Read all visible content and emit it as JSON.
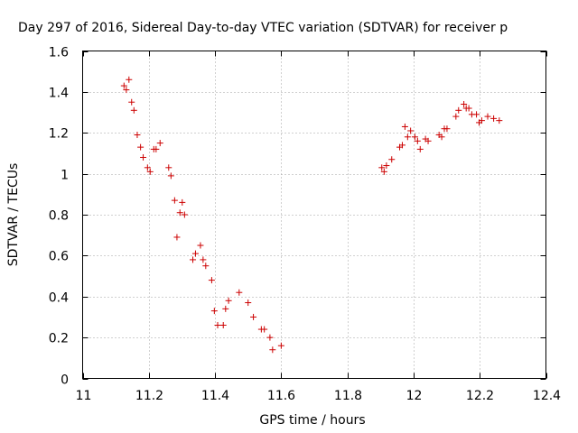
{
  "chart_data": {
    "type": "scatter",
    "title": "Day 297 of 2016, Sidereal Day-to-day VTEC variation (SDTVAR) for receiver p",
    "xlabel": "GPS time / hours",
    "ylabel": "SDTVAR / TECUs",
    "xlim": [
      11,
      12.4
    ],
    "ylim": [
      0,
      1.6
    ],
    "xticks": [
      11,
      11.2,
      11.4,
      11.6,
      11.8,
      12,
      12.2,
      12.4
    ],
    "xtick_labels": [
      "11",
      "11.2",
      "11.4",
      "11.6",
      "11.8",
      "12",
      "12.2",
      "12.4"
    ],
    "yticks": [
      0,
      0.2,
      0.4,
      0.6,
      0.8,
      1,
      1.2,
      1.4,
      1.6
    ],
    "ytick_labels": [
      "0",
      "0.2",
      "0.4",
      "0.6",
      "0.8",
      "1",
      "1.2",
      "1.4",
      "1.6"
    ],
    "grid": true,
    "marker": "plus",
    "color": "#cc0000",
    "points": [
      [
        11.125,
        1.43
      ],
      [
        11.132,
        1.41
      ],
      [
        11.14,
        1.46
      ],
      [
        11.148,
        1.35
      ],
      [
        11.155,
        1.31
      ],
      [
        11.165,
        1.19
      ],
      [
        11.175,
        1.13
      ],
      [
        11.183,
        1.08
      ],
      [
        11.196,
        1.03
      ],
      [
        11.204,
        1.01
      ],
      [
        11.215,
        1.12
      ],
      [
        11.222,
        1.12
      ],
      [
        11.234,
        1.15
      ],
      [
        11.26,
        1.03
      ],
      [
        11.267,
        0.99
      ],
      [
        11.278,
        0.87
      ],
      [
        11.285,
        0.69
      ],
      [
        11.294,
        0.81
      ],
      [
        11.301,
        0.86
      ],
      [
        11.308,
        0.8
      ],
      [
        11.333,
        0.58
      ],
      [
        11.341,
        0.61
      ],
      [
        11.356,
        0.65
      ],
      [
        11.364,
        0.58
      ],
      [
        11.372,
        0.55
      ],
      [
        11.39,
        0.48
      ],
      [
        11.398,
        0.33
      ],
      [
        11.408,
        0.26
      ],
      [
        11.425,
        0.26
      ],
      [
        11.432,
        0.34
      ],
      [
        11.441,
        0.38
      ],
      [
        11.473,
        0.42
      ],
      [
        11.5,
        0.37
      ],
      [
        11.516,
        0.3
      ],
      [
        11.54,
        0.24
      ],
      [
        11.549,
        0.24
      ],
      [
        11.566,
        0.2
      ],
      [
        11.574,
        0.14
      ],
      [
        11.6,
        0.16
      ],
      [
        11.904,
        1.03
      ],
      [
        11.911,
        1.01
      ],
      [
        11.918,
        1.04
      ],
      [
        11.934,
        1.07
      ],
      [
        11.958,
        1.13
      ],
      [
        11.966,
        1.14
      ],
      [
        11.974,
        1.23
      ],
      [
        11.982,
        1.18
      ],
      [
        11.991,
        1.21
      ],
      [
        12.004,
        1.18
      ],
      [
        12.012,
        1.16
      ],
      [
        12.02,
        1.12
      ],
      [
        12.036,
        1.17
      ],
      [
        12.044,
        1.16
      ],
      [
        12.077,
        1.19
      ],
      [
        12.085,
        1.18
      ],
      [
        12.093,
        1.22
      ],
      [
        12.101,
        1.22
      ],
      [
        12.128,
        1.28
      ],
      [
        12.136,
        1.31
      ],
      [
        12.152,
        1.34
      ],
      [
        12.159,
        1.32
      ],
      [
        12.167,
        1.32
      ],
      [
        12.176,
        1.29
      ],
      [
        12.19,
        1.29
      ],
      [
        12.198,
        1.25
      ],
      [
        12.206,
        1.26
      ],
      [
        12.224,
        1.28
      ],
      [
        12.242,
        1.27
      ],
      [
        12.259,
        1.26
      ]
    ]
  }
}
